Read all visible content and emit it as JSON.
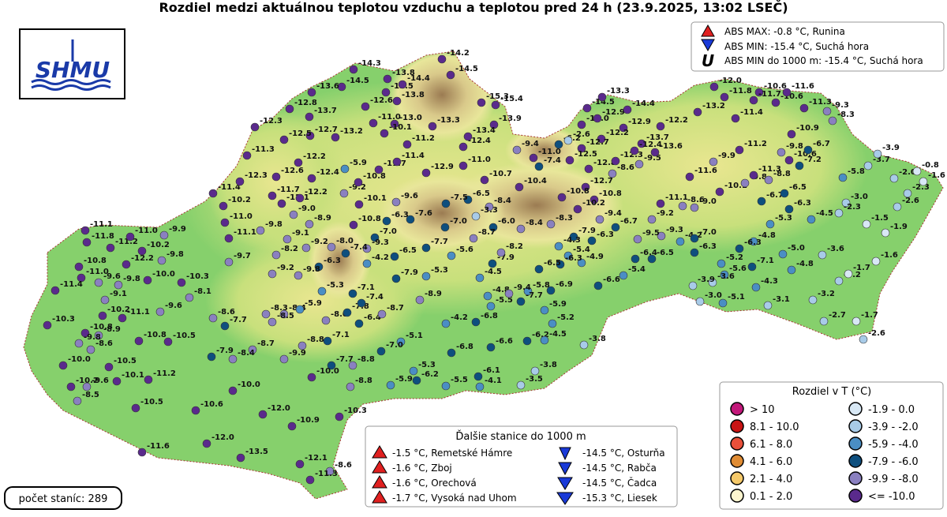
{
  "title": "Rozdiel medzi aktuálnou teplotou vzduchu a teplotou pred 24 h (23.9.2025, 13:02 LSEČ)",
  "logo": "SHMU",
  "extremes": [
    "ABS MAX: -0.8 °C, Runina",
    "ABS MIN: -15.4 °C, Suchá hora",
    "ABS MIN do 1000 m: -15.4 °C, Suchá hora"
  ],
  "station_count": "počet staníc: 289",
  "other_stations": {
    "title": "Ďalšie stanice do 1000 m",
    "warm": [
      "-1.5 °C, Remetské Hámre",
      "-1.6 °C, Zboj",
      "-1.6 °C, Orechová",
      "-1.7 °C, Vysoká nad Uhom"
    ],
    "cold": [
      "-14.5 °C, Osturňa",
      "-14.5 °C, Rabča",
      "-14.5 °C, Čadca",
      "-15.3 °C, Liesek"
    ]
  },
  "legend": {
    "title": "Rozdiel v T (°C)",
    "entries": [
      {
        "label": "> 10",
        "color": "#c2187a"
      },
      {
        "label": "8.1 - 10.0",
        "color": "#c81414"
      },
      {
        "label": "6.1 - 8.0",
        "color": "#e8503a"
      },
      {
        "label": "4.1 - 6.0",
        "color": "#e08c34"
      },
      {
        "label": "2.1 - 4.0",
        "color": "#f5c96a"
      },
      {
        "label": "0.1 - 2.0",
        "color": "#fdf5cf"
      },
      {
        "label": "-1.9 - 0.0",
        "color": "#d8e8f5"
      },
      {
        "label": "-3.9 - -2.0",
        "color": "#a8cbe8"
      },
      {
        "label": "-5.9 - -4.0",
        "color": "#4a8ec4"
      },
      {
        "label": "-7.9 - -6.0",
        "color": "#0e4f7e"
      },
      {
        "label": "-9.9 - -8.0",
        "color": "#8a80c0"
      },
      {
        "label": "<= -10.0",
        "color": "#5a2a8c"
      }
    ]
  },
  "stations": [
    "-14.3",
    "-14.5",
    "-13.6",
    "-12.8",
    "-13.7",
    "-12.3",
    "-12.6",
    "-13.8",
    "-13.5",
    "-14.4",
    "-14.2",
    "-14.5",
    "-15.3",
    "-15.4",
    "-13.9",
    "-13.3",
    "-13.0",
    "-11.0",
    "-10.1",
    "-11.2",
    "-13.4",
    "-12.4",
    "-13.8",
    "-13.2",
    "-12.7",
    "-12.5",
    "-11.3",
    "-12.2",
    "-12.6",
    "-12.4",
    "-5.9",
    "-11.7",
    "-11.4",
    "-12.9",
    "-11.0",
    "-10.7",
    "-9.4",
    "-7.4",
    "-11.0",
    "-6.2",
    "-2.6",
    "-14.0",
    "-12.9",
    "-14.5",
    "-13.3",
    "-14.4",
    "-12.9",
    "-13.7",
    "-12.2",
    "-12.2",
    "-12.7",
    "-12.5",
    "-12.8",
    "-12.3",
    "-9.5",
    "-13.6",
    "-12.4",
    "-8.6",
    "-12.7",
    "-10.8",
    "-10.8",
    "-10.4",
    "-8.4",
    "-6.5",
    "-7.5",
    "-9.6",
    "-10.1",
    "-9.2",
    "-10.8",
    "-6.3",
    "-7.6",
    "-7.0",
    "-3.3",
    "-6.0",
    "-8.4",
    "-8.3",
    "-10.2",
    "-9.4",
    "-6.7",
    "-9.2",
    "-9.3",
    "-9.5",
    "-6.3",
    "-7.9",
    "-4.3",
    "-5.4",
    "-4.9",
    "-6.3",
    "-6.5",
    "-7.9",
    "-8.2",
    "-8.7",
    "-5.6",
    "-7.7",
    "-6.5",
    "-7.0",
    "-9.3",
    "-10.8",
    "-7.4",
    "-4.2",
    "-8.0",
    "-6.3",
    "-9.2",
    "-9.1",
    "-8.2",
    "-9.8",
    "-11.1",
    "-11.0",
    "-10.2",
    "-11.4",
    "-11.7",
    "-12.1",
    "-12.2",
    "-9.0",
    "-8.9",
    "-12.3",
    "-9.7",
    "-9.2",
    "-9.8",
    "-7.9",
    "-5.3",
    "-4.5",
    "-5.8",
    "-6.9",
    "-6.6",
    "-5.4",
    "-6.4",
    "-6.5",
    "-4.2",
    "-7.0",
    "-6.3",
    "-8.6",
    "-9.0",
    "-11.1",
    "-11.6",
    "-10.1",
    "-9.9",
    "-11.2",
    "-9.8",
    "-11.3",
    "-8.8",
    "-6.7",
    "-6.5",
    "-6.3",
    "-5.3",
    "-4.8",
    "-6.3",
    "-5.2",
    "-5.6",
    "-7.1",
    "-5.0",
    "-4.8",
    "-4.3",
    "-3.6",
    "-3.9",
    "-3.0",
    "-5.1",
    "-3.1",
    "-3.2",
    "-2.7",
    "-1.7",
    "-2.6",
    "-3.2",
    "-1.7",
    "-3.6",
    "-1.6",
    "-1.9",
    "-1.5",
    "-3.0",
    "-2.3",
    "-2.6",
    "-2.3",
    "-2.0",
    "-0.8",
    "-1.6",
    "-3.7",
    "-3.9",
    "-5.8",
    "-7.2",
    "-10.6",
    "-9.8",
    "-6.7",
    "-10.9",
    "-4.5",
    "-8.3",
    "-9.3",
    "-11.3",
    "-10.6",
    "-11.6",
    "-10.6",
    "-11.7",
    "-12.0",
    "-11.8",
    "-11.4",
    "-13.2",
    "-11.1",
    "-11.8",
    "-11.2",
    "-11.0",
    "-9.9",
    "-10.2",
    "-12.2",
    "-10.8",
    "-11.0",
    "-9.6",
    "-11.4",
    "-9.8",
    "-10.0",
    "-10.3",
    "-9.8",
    "-9.1",
    "-10.2",
    "-11.1",
    "-9.6",
    "-8.1",
    "-10.3",
    "-10.8",
    "-8.9",
    "-9.8",
    "-8.6",
    "-10.8",
    "-10.5",
    "-8.6",
    "-7.7",
    "-8.3",
    "-8.4",
    "-8.5",
    "-5.9",
    "-8.0",
    "-7.8",
    "-7.4",
    "-7.1",
    "-5.3",
    "-6.4",
    "-8.7",
    "-8.9",
    "-4.2",
    "-6.8",
    "-4.8",
    "-5.5",
    "-9.4",
    "-7.7",
    "-5.9",
    "-5.2",
    "-3.8",
    "-6.2",
    "-4.5",
    "-6.6",
    "-6.8",
    "-5.1",
    "-7.0",
    "-7.1",
    "-8.8",
    "-8.7",
    "-8.4",
    "-7.9",
    "-9.9",
    "-7.7",
    "-8.8",
    "-10.0",
    "-5.3",
    "-6.2",
    "-5.9",
    "-8.8",
    "-5.5",
    "-6.1",
    "-4.1",
    "-3.5",
    "-3.8",
    "-10.0",
    "-10.2",
    "-8.5",
    "-9.6",
    "-10.5",
    "-10.1",
    "-11.2",
    "-10.0",
    "-10.5",
    "-10.6",
    "-12.0",
    "-10.9",
    "-10.3",
    "-12.0",
    "-11.6",
    "-13.5",
    "-12.1",
    "-8.6",
    "-11.3"
  ]
}
